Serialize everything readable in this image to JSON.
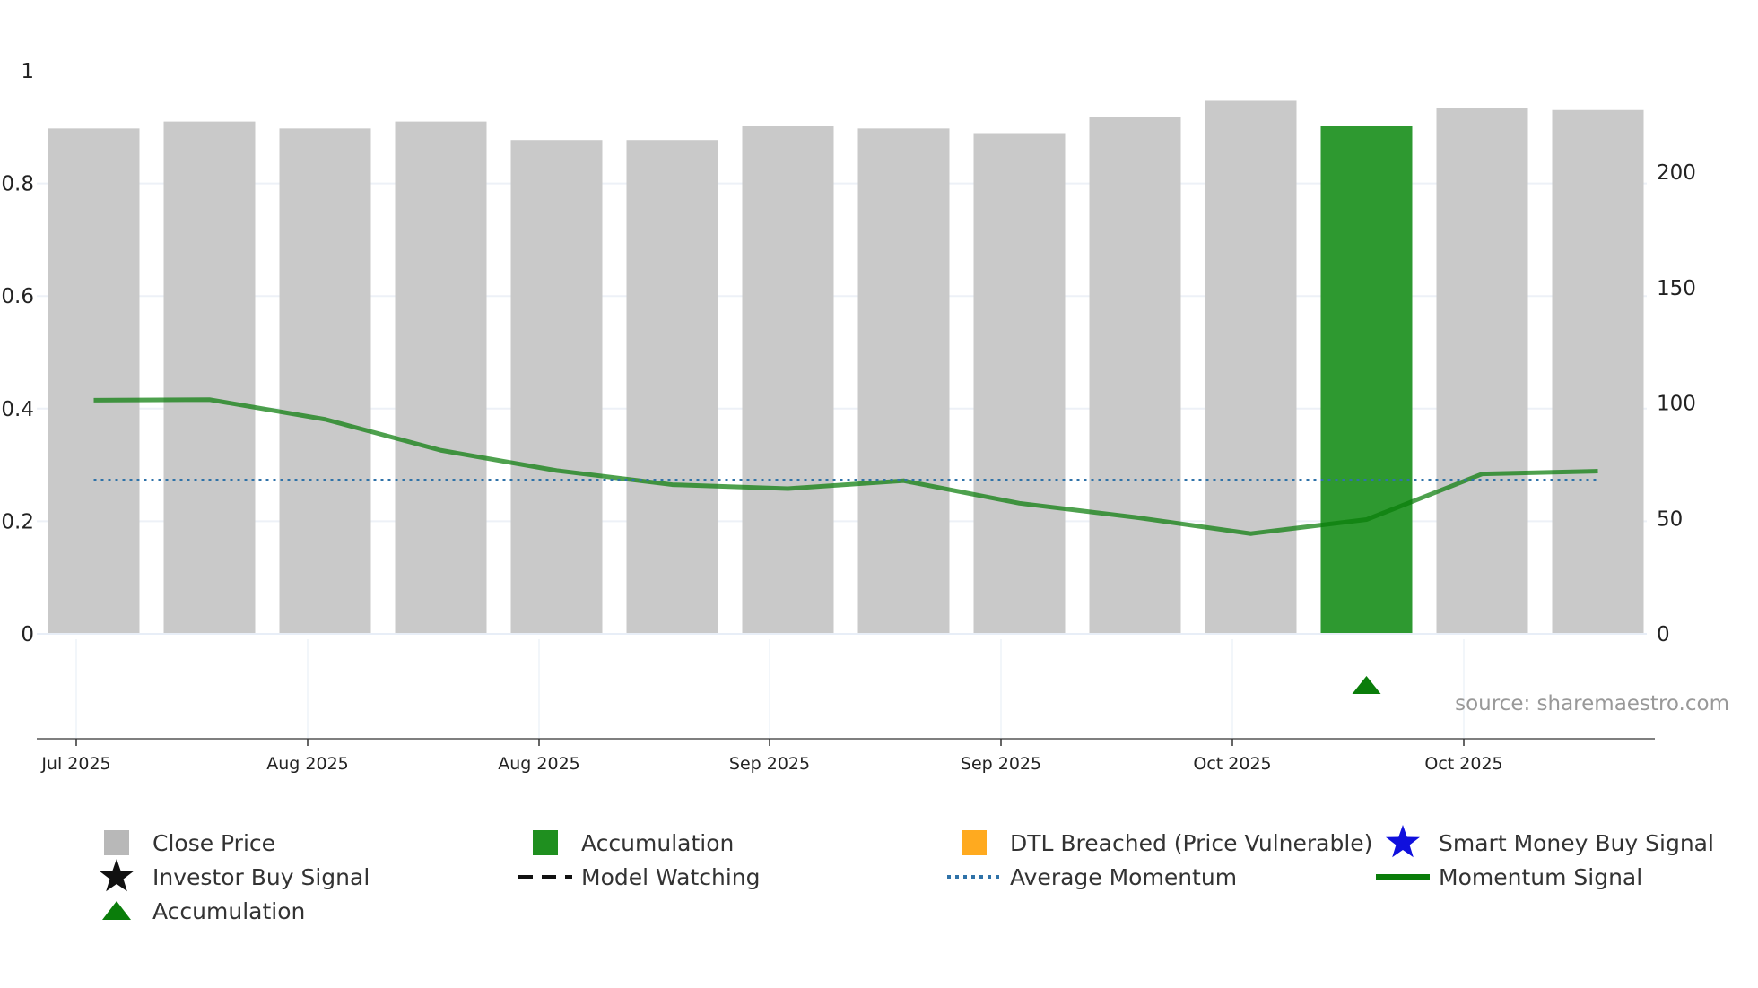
{
  "chart_data": {
    "type": "bar",
    "title": "",
    "source": "source: sharemaestro.com",
    "left_axis": {
      "ticks": [
        0,
        0.2,
        0.4,
        0.6,
        0.8,
        1
      ],
      "tick_labels": [
        "0",
        "0.2",
        "0.4",
        "0.6",
        "0.8",
        "1"
      ],
      "range": [
        0,
        1
      ]
    },
    "right_axis": {
      "ticks": [
        0,
        50,
        100,
        150,
        200
      ],
      "tick_labels": [
        "0",
        "50",
        "100",
        "150",
        "200"
      ],
      "range": [
        0,
        244
      ]
    },
    "x_axis": {
      "tick_labels": [
        "Jul 2025",
        "Aug 2025",
        "Aug 2025",
        "Sep 2025",
        "Sep 2025",
        "Oct 2025",
        "Oct 2025"
      ]
    },
    "bars": {
      "name": "Close Price",
      "values": [
        219,
        222,
        219,
        222,
        214,
        214,
        220,
        219,
        217,
        224,
        231,
        220,
        228,
        227
      ],
      "categories": [
        "Accumulation",
        "Close Price"
      ],
      "colors": [
        "#c9c9c9",
        "#c9c9c9",
        "#c9c9c9",
        "#c9c9c9",
        "#c9c9c9",
        "#c9c9c9",
        "#c9c9c9",
        "#c9c9c9",
        "#c9c9c9",
        "#c9c9c9",
        "#c9c9c9",
        "#2e9930",
        "#c9c9c9",
        "#c9c9c9"
      ]
    },
    "series": [
      {
        "name": "Momentum Signal",
        "color": "#0a7d0a",
        "values": [
          0.415,
          0.416,
          0.381,
          0.326,
          0.29,
          0.265,
          0.258,
          0.272,
          0.232,
          0.207,
          0.178,
          0.203,
          0.284,
          0.289
        ]
      },
      {
        "name": "Average Momentum",
        "color": "#2f72a8",
        "values": [
          0.273,
          0.273,
          0.273,
          0.273,
          0.273,
          0.273,
          0.273,
          0.273,
          0.273,
          0.273,
          0.273,
          0.273,
          0.273,
          0.273
        ]
      }
    ],
    "markers": [
      {
        "type": "Accumulation",
        "shape": "triangle",
        "index": 11,
        "color": "#0a7d0a"
      }
    ]
  },
  "legend": {
    "items": [
      {
        "label": "Close Price",
        "symbol": "square",
        "color": "#b8b8b8"
      },
      {
        "label": "Accumulation",
        "symbol": "square",
        "color": "#1f8f1f"
      },
      {
        "label": "DTL Breached (Price Vulnerable)",
        "symbol": "square",
        "color": "#ffaa1f"
      },
      {
        "label": "Smart Money Buy Signal",
        "symbol": "star",
        "color": "#1010dd"
      },
      {
        "label": "Investor Buy Signal",
        "symbol": "star",
        "color": "#111111"
      },
      {
        "label": "Model Watching",
        "symbol": "dash",
        "color": "#111111"
      },
      {
        "label": "Average Momentum",
        "symbol": "dot",
        "color": "#2f72a8"
      },
      {
        "label": "Momentum Signal",
        "symbol": "line",
        "color": "#0a7d0a"
      },
      {
        "label": "Accumulation",
        "symbol": "triangle",
        "color": "#0a7d0a"
      }
    ]
  }
}
